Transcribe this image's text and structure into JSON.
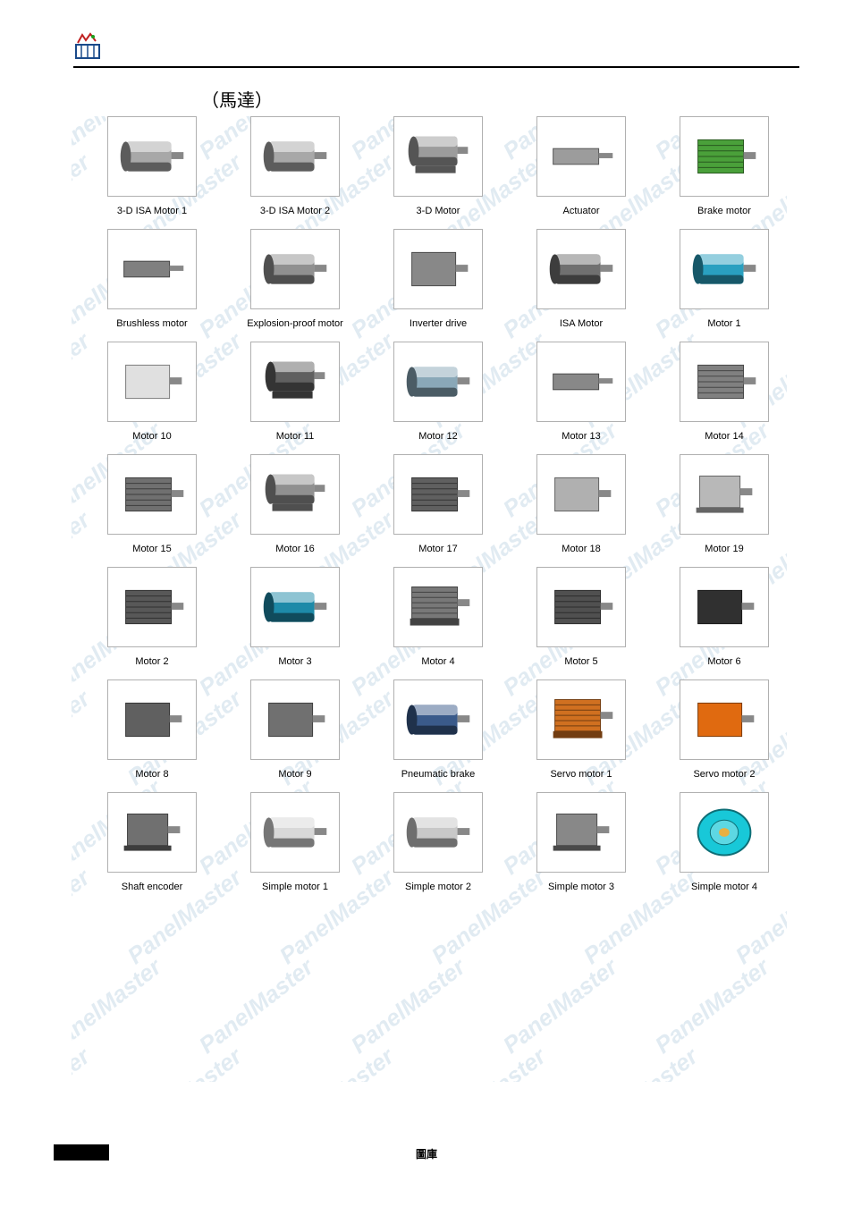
{
  "category_title": "（馬達）",
  "footer_label": "圖庫",
  "watermark_text": "PanelMaster",
  "colors": {
    "page_bg": "#ffffff",
    "thumb_border": "#b0b0b0",
    "watermark": "#7aa8c9",
    "header_rule": "#000000"
  },
  "grid": {
    "cols": 5,
    "rows": 7,
    "thumb_w": 100,
    "thumb_h": 90
  },
  "items": [
    {
      "label": "3-D ISA Motor 1",
      "body_color": "#a8a8a8",
      "shape": "cyl"
    },
    {
      "label": "3-D ISA Motor 2",
      "body_color": "#a8a8a8",
      "shape": "cyl"
    },
    {
      "label": "3-D Motor",
      "body_color": "#9c9c9c",
      "shape": "cyl-foot"
    },
    {
      "label": "Actuator",
      "body_color": "#9c9c9c",
      "shape": "bar"
    },
    {
      "label": "Brake motor",
      "body_color": "#4aa03a",
      "shape": "fins"
    },
    {
      "label": "Brushless motor",
      "body_color": "#808080",
      "shape": "bar"
    },
    {
      "label": "Explosion-proof motor",
      "body_color": "#909090",
      "shape": "cyl"
    },
    {
      "label": "Inverter drive",
      "body_color": "#888888",
      "shape": "box"
    },
    {
      "label": "ISA Motor",
      "body_color": "#707070",
      "shape": "cyl"
    },
    {
      "label": "Motor 1",
      "body_color": "#2aa0c0",
      "shape": "cyl"
    },
    {
      "label": "Motor 10",
      "body_color": "#e0e0e0",
      "shape": "box"
    },
    {
      "label": "Motor 11",
      "body_color": "#606060",
      "shape": "cyl-foot"
    },
    {
      "label": "Motor 12",
      "body_color": "#8aa8b8",
      "shape": "cyl"
    },
    {
      "label": "Motor 13",
      "body_color": "#888888",
      "shape": "bar"
    },
    {
      "label": "Motor 14",
      "body_color": "#808080",
      "shape": "fins"
    },
    {
      "label": "Motor 15",
      "body_color": "#707070",
      "shape": "fins"
    },
    {
      "label": "Motor 16",
      "body_color": "#909090",
      "shape": "cyl-foot"
    },
    {
      "label": "Motor 17",
      "body_color": "#606060",
      "shape": "fins"
    },
    {
      "label": "Motor 18",
      "body_color": "#b0b0b0",
      "shape": "box"
    },
    {
      "label": "Motor 19",
      "body_color": "#b8b8b8",
      "shape": "box-foot"
    },
    {
      "label": "Motor 2",
      "body_color": "#585858",
      "shape": "fins"
    },
    {
      "label": "Motor 3",
      "body_color": "#1e8aa8",
      "shape": "cyl"
    },
    {
      "label": "Motor 4",
      "body_color": "#787878",
      "shape": "fins-foot"
    },
    {
      "label": "Motor 5",
      "body_color": "#505050",
      "shape": "fins"
    },
    {
      "label": "Motor 6",
      "body_color": "#303030",
      "shape": "box"
    },
    {
      "label": "Motor 8",
      "body_color": "#606060",
      "shape": "box"
    },
    {
      "label": "Motor 9",
      "body_color": "#707070",
      "shape": "box"
    },
    {
      "label": "Pneumatic brake",
      "body_color": "#3a5a8a",
      "shape": "cyl"
    },
    {
      "label": "Servo motor 1",
      "body_color": "#d07020",
      "shape": "fins-foot"
    },
    {
      "label": "Servo motor 2",
      "body_color": "#e06a10",
      "shape": "box"
    },
    {
      "label": "Shaft encoder",
      "body_color": "#707070",
      "shape": "box-foot"
    },
    {
      "label": "Simple motor 1",
      "body_color": "#d8d8d8",
      "shape": "cyl"
    },
    {
      "label": "Simple motor 2",
      "body_color": "#c8c8c8",
      "shape": "cyl"
    },
    {
      "label": "Simple motor 3",
      "body_color": "#888888",
      "shape": "box-foot"
    },
    {
      "label": "Simple motor 4",
      "body_color": "#18c8d8",
      "shape": "wheel"
    }
  ]
}
